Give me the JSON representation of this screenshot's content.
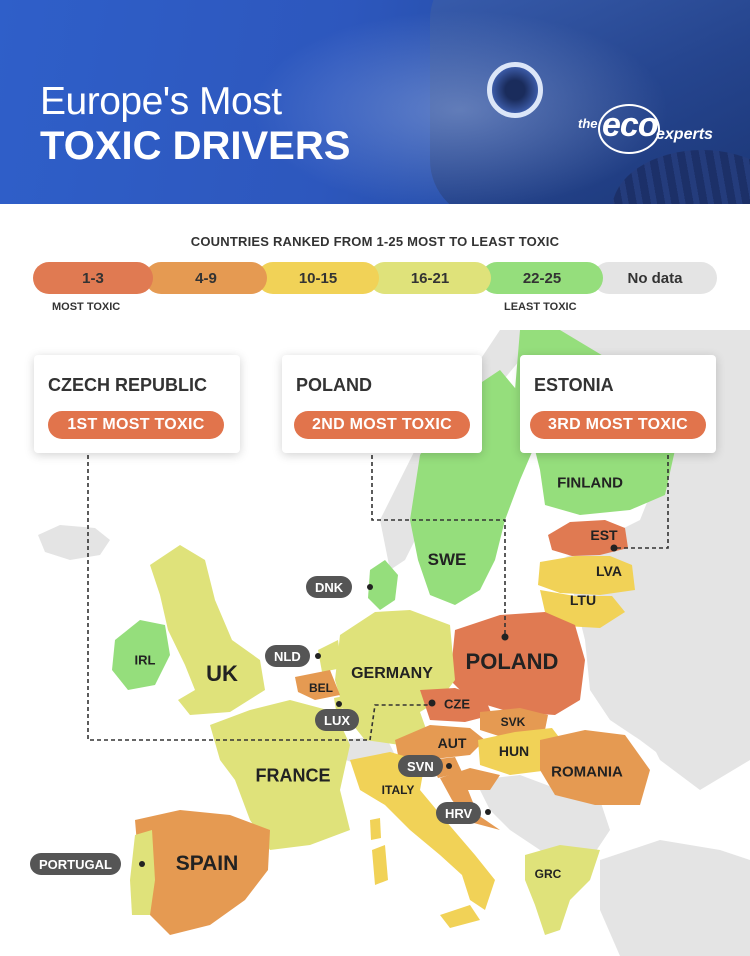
{
  "header": {
    "title_line1": "Europe's Most",
    "title_line2": "TOXIC DRIVERS",
    "logo": {
      "the": "the",
      "eco": "eco",
      "experts": "experts"
    }
  },
  "legend": {
    "title": "COUNTRIES RANKED FROM 1-25 MOST TO LEAST TOXIC",
    "items": [
      {
        "label": "1-3",
        "color": "#e07a52"
      },
      {
        "label": "4-9",
        "color": "#e59a52"
      },
      {
        "label": "10-15",
        "color": "#f1d257"
      },
      {
        "label": "16-21",
        "color": "#dfe27a"
      },
      {
        "label": "22-25",
        "color": "#95de7c"
      },
      {
        "label": "No data",
        "color": "#e4e4e4"
      }
    ],
    "most_toxic": "MOST TOXIC",
    "least_toxic": "LEAST TOXIC"
  },
  "callouts": [
    {
      "country": "CZECH REPUBLIC",
      "rank": "1ST MOST TOXIC"
    },
    {
      "country": "POLAND",
      "rank": "2ND MOST TOXIC"
    },
    {
      "country": "ESTONIA",
      "rank": "3RD MOST TOXIC"
    }
  ],
  "map_labels": {
    "finland": "FINLAND",
    "swe": "SWE",
    "est": "EST",
    "lva": "LVA",
    "ltu": "LTU",
    "poland": "POLAND",
    "irl": "IRL",
    "uk": "UK",
    "germany": "GERMANY",
    "bel": "BEL",
    "cze": "CZE",
    "svk": "SVK",
    "aut": "AUT",
    "hun": "HUN",
    "romania": "ROMANIA",
    "france": "FRANCE",
    "italy": "ITALY",
    "spain": "SPAIN",
    "grc": "GRC"
  },
  "tags": {
    "dnk": "DNK",
    "nld": "NLD",
    "lux": "LUX",
    "svn": "SVN",
    "hrv": "HRV",
    "portugal": "PORTUGAL"
  }
}
